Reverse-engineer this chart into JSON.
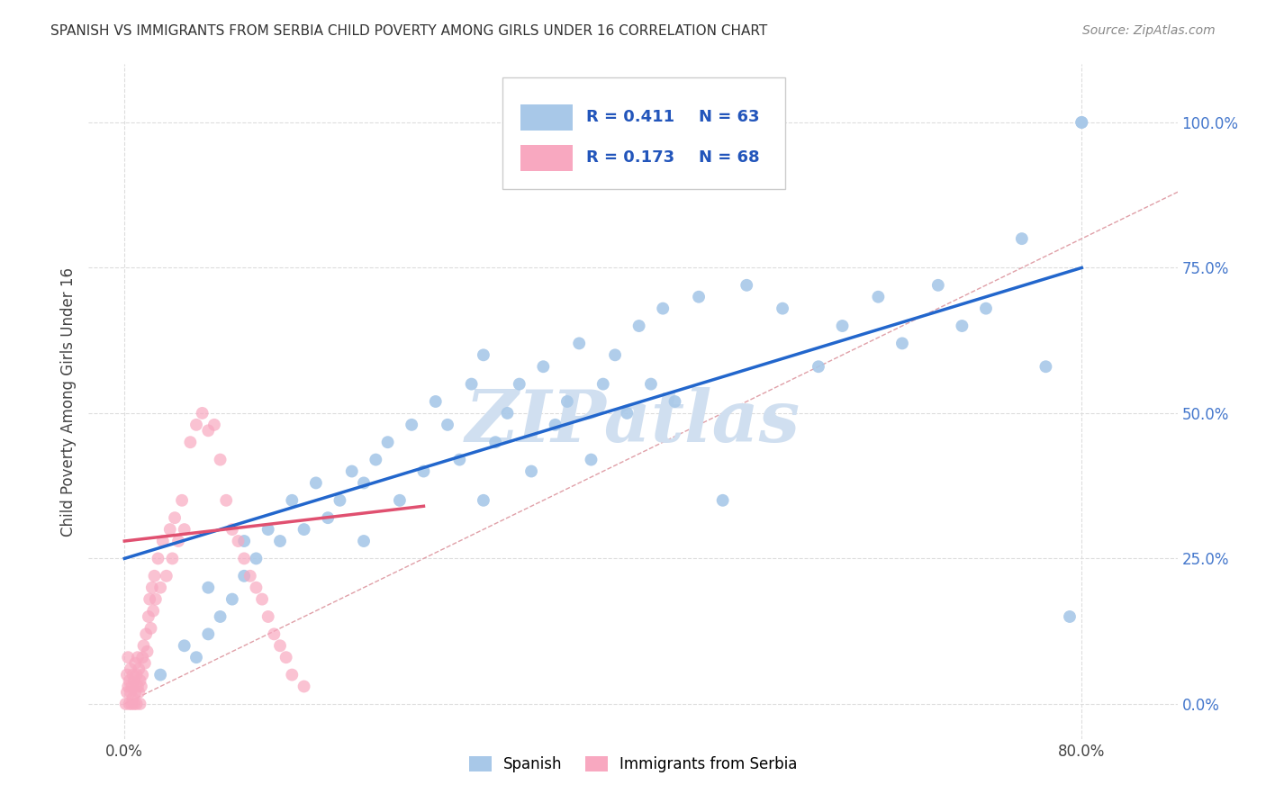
{
  "title": "SPANISH VS IMMIGRANTS FROM SERBIA CHILD POVERTY AMONG GIRLS UNDER 16 CORRELATION CHART",
  "source": "Source: ZipAtlas.com",
  "ylabel": "Child Poverty Among Girls Under 16",
  "x_tick_labels": [
    "0.0%",
    "80.0%"
  ],
  "y_tick_labels": [
    "0.0%",
    "25.0%",
    "50.0%",
    "75.0%",
    "100.0%"
  ],
  "y_tick_values": [
    0.0,
    0.25,
    0.5,
    0.75,
    1.0
  ],
  "x_tick_values": [
    0.0,
    0.8
  ],
  "xlim": [
    -0.03,
    0.88
  ],
  "ylim": [
    -0.06,
    1.1
  ],
  "legend_entries": [
    "Spanish",
    "Immigrants from Serbia"
  ],
  "r_n_text_color": "#2255bb",
  "watermark": "ZIPatlas",
  "watermark_color": "#d0dff0",
  "background_color": "#ffffff",
  "grid_color": "#dddddd",
  "scatter_spanish_color": "#a8c8e8",
  "scatter_serbia_color": "#f8a8c0",
  "trend_spanish_color": "#2266cc",
  "trend_serbia_color": "#e05070",
  "diagonal_color": "#e0a0a8",
  "diagonal_style": "--",
  "trend_spanish_x0": 0.0,
  "trend_spanish_y0": 0.25,
  "trend_spanish_x1": 0.8,
  "trend_spanish_y1": 0.75,
  "trend_serbia_x0": 0.0,
  "trend_serbia_y0": 0.28,
  "trend_serbia_x1": 0.25,
  "trend_serbia_y1": 0.34,
  "spanish_x": [
    0.03,
    0.05,
    0.06,
    0.07,
    0.07,
    0.08,
    0.09,
    0.1,
    0.1,
    0.11,
    0.12,
    0.13,
    0.14,
    0.15,
    0.16,
    0.17,
    0.18,
    0.19,
    0.2,
    0.2,
    0.21,
    0.22,
    0.23,
    0.24,
    0.25,
    0.26,
    0.27,
    0.28,
    0.29,
    0.3,
    0.3,
    0.31,
    0.32,
    0.33,
    0.34,
    0.35,
    0.36,
    0.37,
    0.38,
    0.39,
    0.4,
    0.41,
    0.42,
    0.43,
    0.44,
    0.45,
    0.46,
    0.48,
    0.5,
    0.52,
    0.55,
    0.58,
    0.6,
    0.63,
    0.65,
    0.68,
    0.7,
    0.72,
    0.75,
    0.77,
    0.79,
    0.8,
    0.8
  ],
  "spanish_y": [
    0.05,
    0.1,
    0.08,
    0.12,
    0.2,
    0.15,
    0.18,
    0.22,
    0.28,
    0.25,
    0.3,
    0.28,
    0.35,
    0.3,
    0.38,
    0.32,
    0.35,
    0.4,
    0.38,
    0.28,
    0.42,
    0.45,
    0.35,
    0.48,
    0.4,
    0.52,
    0.48,
    0.42,
    0.55,
    0.35,
    0.6,
    0.45,
    0.5,
    0.55,
    0.4,
    0.58,
    0.48,
    0.52,
    0.62,
    0.42,
    0.55,
    0.6,
    0.5,
    0.65,
    0.55,
    0.68,
    0.52,
    0.7,
    0.35,
    0.72,
    0.68,
    0.58,
    0.65,
    0.7,
    0.62,
    0.72,
    0.65,
    0.68,
    0.8,
    0.58,
    0.15,
    1.0,
    1.0
  ],
  "serbia_x": [
    0.001,
    0.002,
    0.002,
    0.003,
    0.003,
    0.004,
    0.004,
    0.005,
    0.005,
    0.006,
    0.006,
    0.007,
    0.007,
    0.008,
    0.008,
    0.009,
    0.009,
    0.01,
    0.01,
    0.011,
    0.011,
    0.012,
    0.012,
    0.013,
    0.013,
    0.014,
    0.015,
    0.015,
    0.016,
    0.017,
    0.018,
    0.019,
    0.02,
    0.021,
    0.022,
    0.023,
    0.024,
    0.025,
    0.026,
    0.028,
    0.03,
    0.032,
    0.035,
    0.038,
    0.04,
    0.042,
    0.045,
    0.048,
    0.05,
    0.055,
    0.06,
    0.065,
    0.07,
    0.075,
    0.08,
    0.085,
    0.09,
    0.095,
    0.1,
    0.105,
    0.11,
    0.115,
    0.12,
    0.125,
    0.13,
    0.135,
    0.14,
    0.15
  ],
  "serbia_y": [
    0.0,
    0.02,
    0.05,
    0.03,
    0.08,
    0.0,
    0.04,
    0.02,
    0.06,
    0.0,
    0.03,
    0.01,
    0.05,
    0.0,
    0.04,
    0.02,
    0.07,
    0.0,
    0.05,
    0.03,
    0.08,
    0.02,
    0.06,
    0.0,
    0.04,
    0.03,
    0.05,
    0.08,
    0.1,
    0.07,
    0.12,
    0.09,
    0.15,
    0.18,
    0.13,
    0.2,
    0.16,
    0.22,
    0.18,
    0.25,
    0.2,
    0.28,
    0.22,
    0.3,
    0.25,
    0.32,
    0.28,
    0.35,
    0.3,
    0.45,
    0.48,
    0.5,
    0.47,
    0.48,
    0.42,
    0.35,
    0.3,
    0.28,
    0.25,
    0.22,
    0.2,
    0.18,
    0.15,
    0.12,
    0.1,
    0.08,
    0.05,
    0.03
  ]
}
